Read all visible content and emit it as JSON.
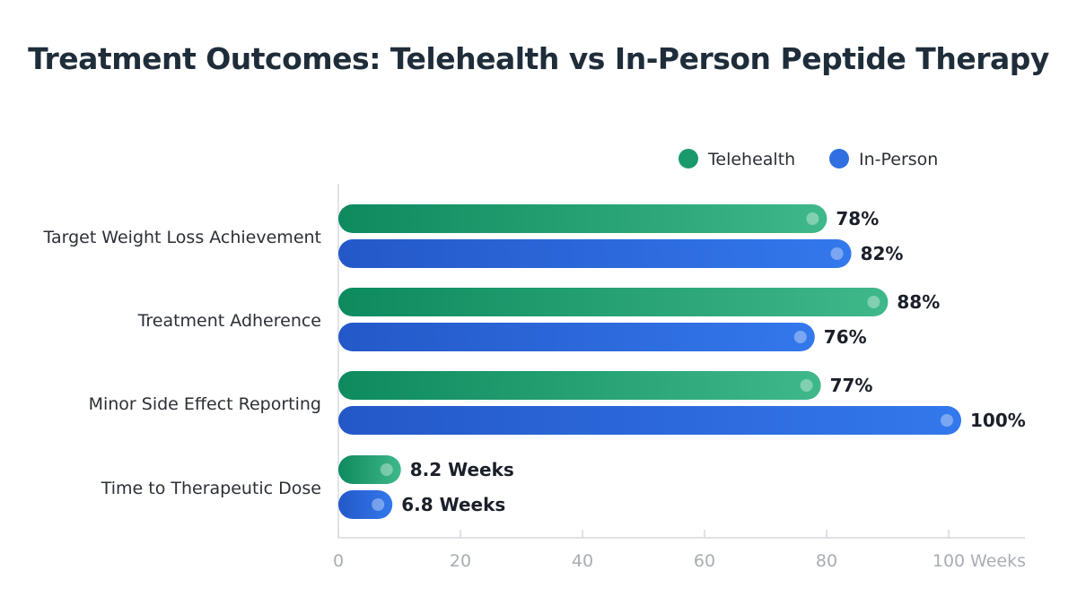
{
  "chart_data": {
    "type": "bar",
    "orientation": "horizontal",
    "title": "Treatment Outcomes: Telehealth vs In-Person Peptide Therapy",
    "categories": [
      "Target Weight Loss Achievement",
      "Treatment Adherence",
      "Minor Side Effect Reporting",
      "Time to Therapeutic Dose"
    ],
    "series": [
      {
        "name": "Telehealth",
        "color": "#1a9a6c",
        "values": [
          78,
          88,
          77,
          8.2
        ],
        "labels": [
          "78%",
          "88%",
          "77%",
          "8.2 Weeks"
        ]
      },
      {
        "name": "In-Person",
        "color": "#2f6fe0",
        "values": [
          82,
          76,
          100,
          6.8
        ],
        "labels": [
          "82%",
          "76%",
          "100%",
          "6.8 Weeks"
        ]
      }
    ],
    "xlim": [
      0,
      100
    ],
    "xticks": [
      "0",
      "20",
      "40",
      "60",
      "80",
      "100"
    ],
    "xlabel": "Weeks",
    "legend": "top-right",
    "grid": false
  }
}
